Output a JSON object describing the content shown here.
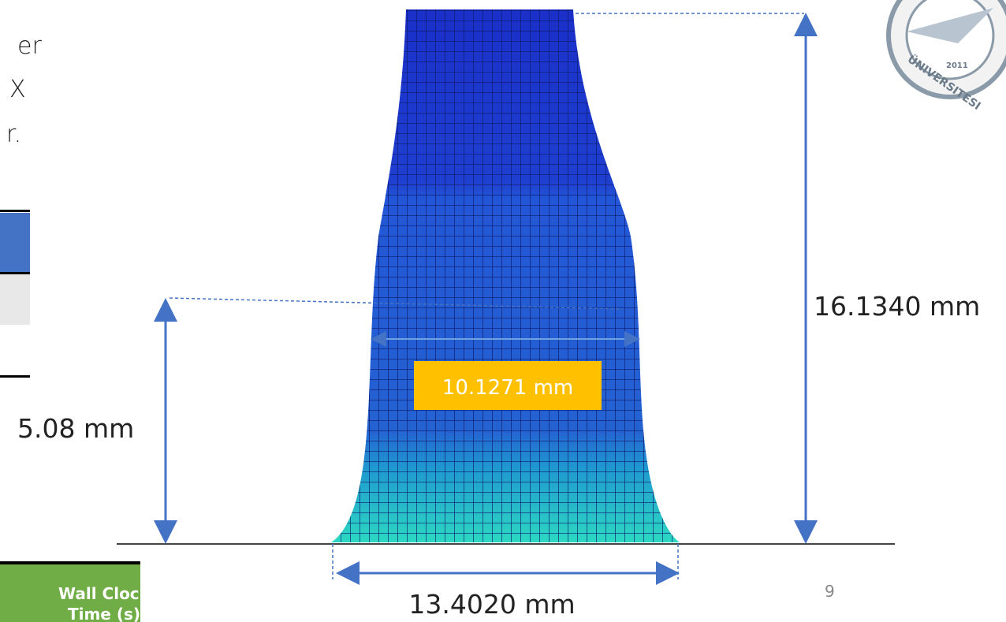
{
  "left_text": {
    "lines": [
      "er",
      "X",
      "r."
    ]
  },
  "table": {
    "header": "Wall Clock Time (s)"
  },
  "dimensions": {
    "height_total": "16.1340 mm",
    "height_neck": "5.08 mm",
    "width_neck": "10.1271 mm",
    "width_base": "13.4020 mm"
  },
  "logo": {
    "year": "2011",
    "text": "ÜNIVERSITESI"
  },
  "page_number": "9"
}
